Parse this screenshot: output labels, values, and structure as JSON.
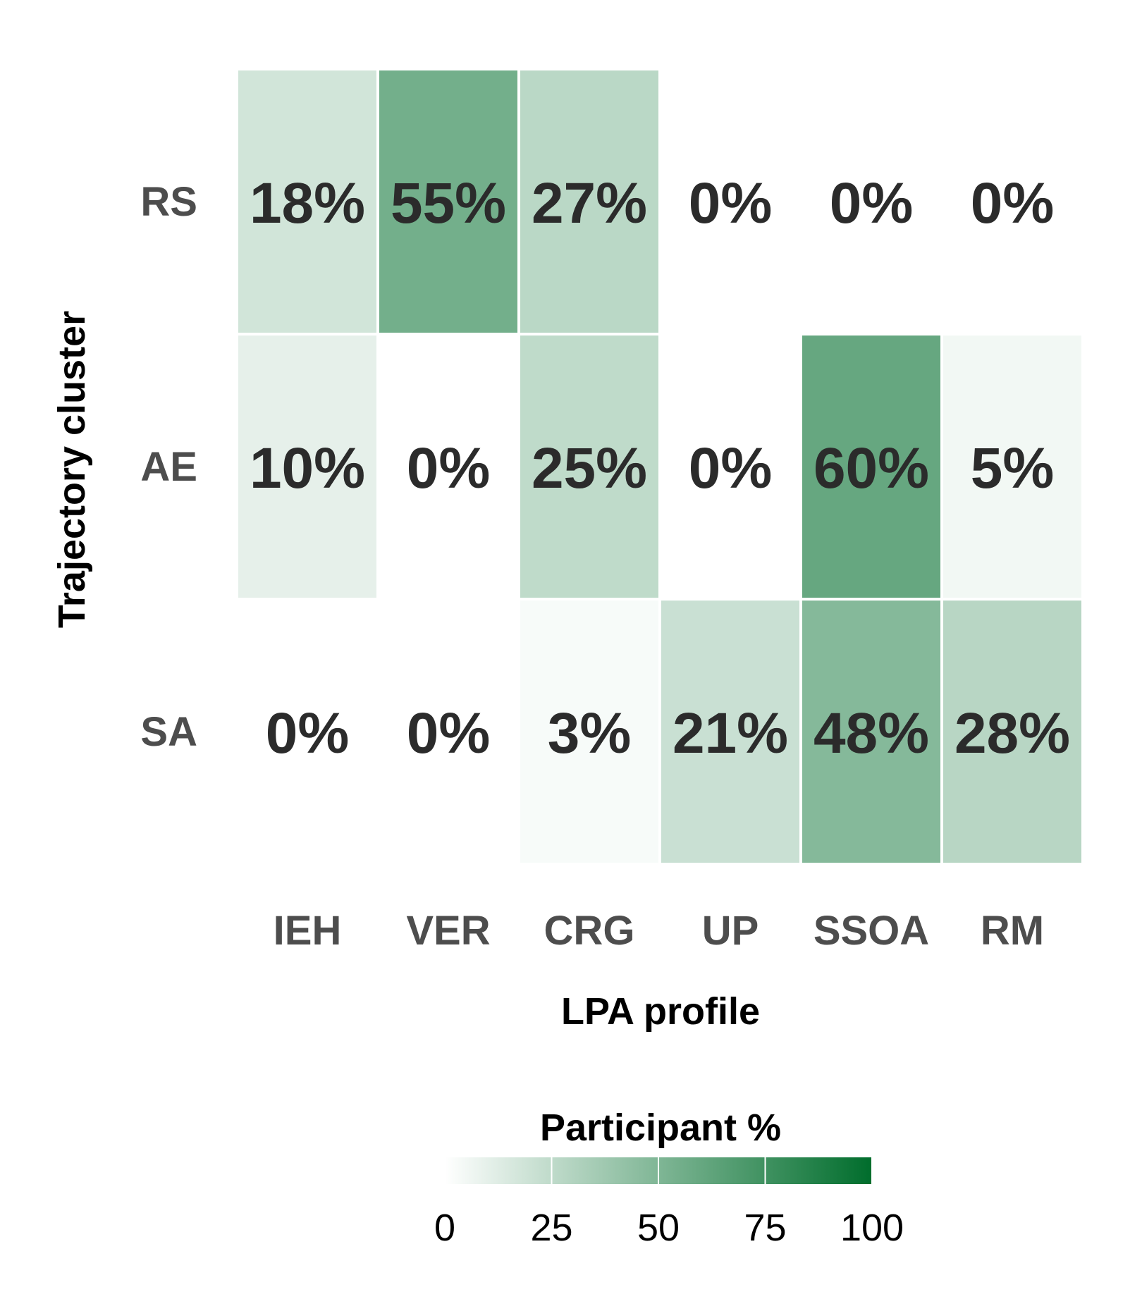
{
  "chart_data": {
    "type": "heatmap",
    "xlabel": "LPA profile",
    "ylabel": "Trajectory cluster",
    "x_categories": [
      "IEH",
      "VER",
      "CRG",
      "UP",
      "SSOA",
      "RM"
    ],
    "y_categories": [
      "RS",
      "AE",
      "SA"
    ],
    "values": [
      [
        18,
        55,
        27,
        0,
        0,
        0
      ],
      [
        10,
        0,
        25,
        0,
        60,
        5
      ],
      [
        0,
        0,
        3,
        21,
        48,
        28
      ]
    ],
    "cell_labels": [
      [
        "18%",
        "55%",
        "27%",
        "0%",
        "0%",
        "0%"
      ],
      [
        "10%",
        "0%",
        "25%",
        "0%",
        "60%",
        "5%"
      ],
      [
        "0%",
        "0%",
        "3%",
        "21%",
        "48%",
        "28%"
      ]
    ],
    "legend": {
      "title": "Participant %",
      "range": [
        0,
        100
      ],
      "ticks": [
        "0",
        "25",
        "50",
        "75",
        "100"
      ],
      "tick_values": [
        0,
        25,
        50,
        75,
        100
      ],
      "color_low": "#ffffff",
      "color_high": "#006d2c"
    }
  }
}
